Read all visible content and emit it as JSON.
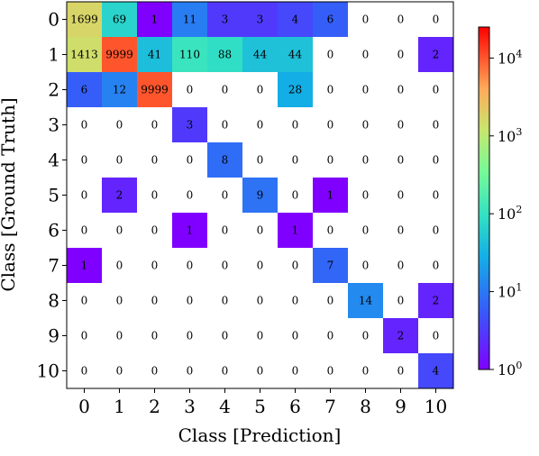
{
  "chart_data": {
    "type": "heatmap",
    "title": "",
    "xlabel": "Class [Prediction]",
    "ylabel": "Class [Ground Truth]",
    "x_categories": [
      "0",
      "1",
      "2",
      "3",
      "4",
      "5",
      "6",
      "7",
      "8",
      "9",
      "10"
    ],
    "y_categories": [
      "0",
      "1",
      "2",
      "3",
      "4",
      "5",
      "6",
      "7",
      "8",
      "9",
      "10"
    ],
    "values": [
      [
        1699,
        69,
        1,
        11,
        3,
        3,
        4,
        6,
        0,
        0,
        0
      ],
      [
        1413,
        9999,
        41,
        110,
        88,
        44,
        44,
        0,
        0,
        0,
        2
      ],
      [
        6,
        12,
        9999,
        0,
        0,
        0,
        28,
        0,
        0,
        0,
        0
      ],
      [
        0,
        0,
        0,
        3,
        0,
        0,
        0,
        0,
        0,
        0,
        0
      ],
      [
        0,
        0,
        0,
        0,
        8,
        0,
        0,
        0,
        0,
        0,
        0
      ],
      [
        0,
        2,
        0,
        0,
        0,
        9,
        0,
        1,
        0,
        0,
        0
      ],
      [
        0,
        0,
        0,
        1,
        0,
        0,
        1,
        0,
        0,
        0,
        0
      ],
      [
        1,
        0,
        0,
        0,
        0,
        0,
        0,
        7,
        0,
        0,
        0
      ],
      [
        0,
        0,
        0,
        0,
        0,
        0,
        0,
        0,
        14,
        0,
        2
      ],
      [
        0,
        0,
        0,
        0,
        0,
        0,
        0,
        0,
        0,
        2,
        0
      ],
      [
        0,
        0,
        0,
        0,
        0,
        0,
        0,
        0,
        0,
        0,
        4
      ]
    ],
    "color_scale": "log",
    "colormap": "rainbow",
    "zero_color": "#ffffff",
    "colorbar": {
      "range": [
        1,
        25000
      ],
      "ticks": [
        {
          "value": 1,
          "base": "10",
          "exp": "0"
        },
        {
          "value": 10,
          "base": "10",
          "exp": "1"
        },
        {
          "value": 100,
          "base": "10",
          "exp": "2"
        },
        {
          "value": 1000,
          "base": "10",
          "exp": "3"
        },
        {
          "value": 10000,
          "base": "10",
          "exp": "4"
        }
      ]
    },
    "grid": false
  }
}
